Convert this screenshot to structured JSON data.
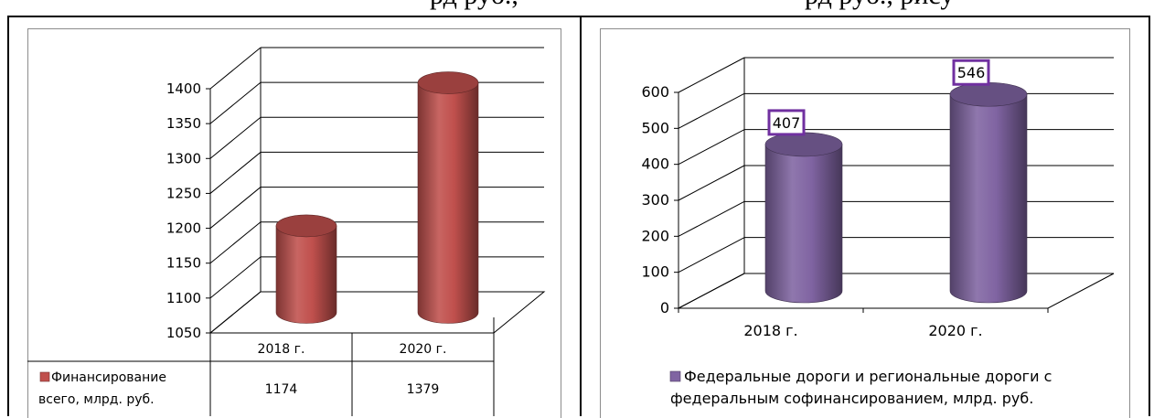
{
  "page": {
    "top_text_left": "рд руб.,",
    "top_text_right": "рд руб., рису"
  },
  "colors": {
    "bar_red": "#c0504d",
    "bar_purple": "#8064a2",
    "grid": "#000000",
    "label_border": "#7030a0"
  },
  "chart_data": [
    {
      "type": "bar",
      "style": "3d-cylinder",
      "categories": [
        "2018 г.",
        "2020 г."
      ],
      "series": [
        {
          "name": "Финансирование всего, млрд. руб.",
          "values": [
            1174,
            1379
          ],
          "color": "#c0504d"
        }
      ],
      "ylim": [
        1050,
        1400
      ],
      "yticks": [
        "1050",
        "1100",
        "1150",
        "1200",
        "1250",
        "1300",
        "1350",
        "1400"
      ],
      "grid": true,
      "data_table": {
        "header": [
          "2018 г.",
          "2020 г."
        ],
        "row_label": "Финансирование всего, млрд. руб.",
        "row_label_lines": [
          "Финансирование",
          "всего, млрд. руб."
        ],
        "row_values": [
          "1174",
          "1379"
        ]
      }
    },
    {
      "type": "bar",
      "style": "3d-cylinder",
      "categories": [
        "2018 г.",
        "2020 г."
      ],
      "series": [
        {
          "name": "Федеральные дороги и региональные дороги с федеральным софинансированием, млрд. руб.",
          "values": [
            407,
            546
          ],
          "color": "#8064a2"
        }
      ],
      "data_labels": [
        "407",
        "546"
      ],
      "ylim": [
        0,
        600
      ],
      "yticks": [
        "0",
        "100",
        "200",
        "300",
        "400",
        "500",
        "600"
      ],
      "grid": true,
      "legend": {
        "position": "bottom",
        "lines": [
          "Федеральные дороги и региональные дороги с",
          "федеральным софинансированием, млрд. руб."
        ]
      }
    }
  ]
}
